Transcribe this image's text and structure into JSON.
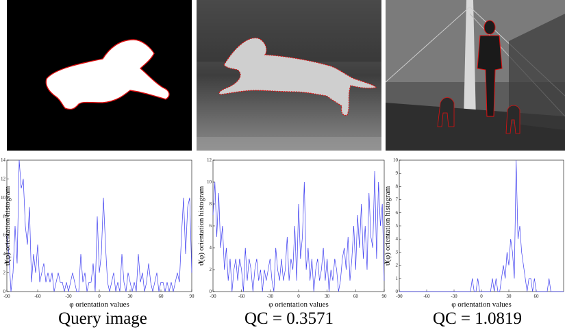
{
  "panels": [
    {
      "caption": "Query image",
      "image": "white-dog-silhouette-mask-red-contour"
    },
    {
      "caption": "QC = 0.3571",
      "image": "grayscale-leaping-dog-red-contour"
    },
    {
      "caption": "QC = 1.0819",
      "image": "grayscale-man-walking-dogs-on-bridge-red-contour"
    }
  ],
  "colors": {
    "series": "#3b3bf0",
    "contour": "#e01010",
    "axis": "#000000"
  },
  "chart_data": [
    {
      "type": "line",
      "xlabel": "φ orientation values",
      "ylabel": "ϑ(φ) orientation histogram",
      "xlim": [
        -90,
        90
      ],
      "ylim": [
        0,
        14
      ],
      "xticks": [
        -90,
        -60,
        -30,
        0,
        30,
        60,
        90
      ],
      "yticks": [
        0,
        2,
        4,
        6,
        8,
        10,
        12,
        14
      ],
      "x": [
        -90,
        -88,
        -86,
        -84,
        -82,
        -80,
        -78,
        -76,
        -74,
        -72,
        -70,
        -68,
        -66,
        -64,
        -62,
        -60,
        -58,
        -56,
        -54,
        -52,
        -50,
        -48,
        -46,
        -44,
        -42,
        -40,
        -38,
        -36,
        -34,
        -32,
        -30,
        -28,
        -26,
        -24,
        -22,
        -20,
        -18,
        -16,
        -14,
        -12,
        -10,
        -8,
        -6,
        -4,
        -2,
        0,
        2,
        4,
        6,
        8,
        10,
        12,
        14,
        16,
        18,
        20,
        22,
        24,
        26,
        28,
        30,
        32,
        34,
        36,
        38,
        40,
        42,
        44,
        46,
        48,
        50,
        52,
        54,
        56,
        58,
        60,
        62,
        64,
        66,
        68,
        70,
        72,
        74,
        76,
        78,
        80,
        82,
        84,
        86,
        88,
        90
      ],
      "values": [
        6,
        4,
        0,
        2,
        7,
        3,
        14,
        11,
        12,
        7,
        5,
        9,
        1,
        4,
        2,
        5,
        1,
        2,
        3,
        1,
        2,
        1,
        2,
        0,
        1,
        2,
        1,
        1,
        0,
        1,
        0,
        1,
        2,
        1,
        0,
        0,
        4,
        1,
        2,
        0,
        1,
        1,
        3,
        0,
        8,
        2,
        4,
        10,
        5,
        1,
        0,
        1,
        2,
        0,
        1,
        0,
        4,
        1,
        0,
        2,
        1,
        0,
        1,
        0,
        4,
        1,
        2,
        0,
        1,
        3,
        1,
        0,
        1,
        2,
        0,
        1,
        1,
        0,
        1,
        0,
        1,
        0,
        1,
        2,
        1,
        6,
        10,
        4,
        9,
        10,
        2
      ],
      "series": [
        {
          "values_ref": "values"
        }
      ]
    },
    {
      "type": "line",
      "xlabel": "φ orientation values",
      "ylabel": "ϑ(φ) orientation histogram",
      "xlim": [
        -90,
        90
      ],
      "ylim": [
        0,
        12
      ],
      "xticks": [
        -90,
        -60,
        -30,
        0,
        30,
        60,
        90
      ],
      "yticks": [
        0,
        2,
        4,
        6,
        8,
        10,
        12
      ],
      "x": [
        -90,
        -88,
        -86,
        -84,
        -82,
        -80,
        -78,
        -76,
        -74,
        -72,
        -70,
        -68,
        -66,
        -64,
        -62,
        -60,
        -58,
        -56,
        -54,
        -52,
        -50,
        -48,
        -46,
        -44,
        -42,
        -40,
        -38,
        -36,
        -34,
        -32,
        -30,
        -28,
        -26,
        -24,
        -22,
        -20,
        -18,
        -16,
        -14,
        -12,
        -10,
        -8,
        -6,
        -4,
        -2,
        0,
        2,
        4,
        6,
        8,
        10,
        12,
        14,
        16,
        18,
        20,
        22,
        24,
        26,
        28,
        30,
        32,
        34,
        36,
        38,
        40,
        42,
        44,
        46,
        48,
        50,
        52,
        54,
        56,
        58,
        60,
        62,
        64,
        66,
        68,
        70,
        72,
        74,
        76,
        78,
        80,
        82,
        84,
        86,
        88,
        90
      ],
      "values": [
        7,
        10,
        5,
        9,
        4,
        6,
        2,
        4,
        1,
        3,
        0,
        2,
        3,
        1,
        3,
        2,
        0,
        4,
        1,
        3,
        2,
        0,
        2,
        3,
        1,
        2,
        0,
        2,
        1,
        2,
        3,
        1,
        0,
        4,
        2,
        1,
        3,
        1,
        2,
        5,
        1,
        3,
        2,
        6,
        1,
        8,
        3,
        5,
        10,
        2,
        4,
        1,
        3,
        0,
        2,
        3,
        1,
        2,
        4,
        1,
        3,
        0,
        2,
        1,
        3,
        2,
        0,
        1,
        3,
        4,
        2,
        5,
        1,
        3,
        6,
        2,
        7,
        4,
        8,
        3,
        6,
        2,
        9,
        5,
        4,
        11,
        3,
        10,
        6,
        8,
        1
      ],
      "series": [
        {
          "values_ref": "values"
        }
      ]
    },
    {
      "type": "line",
      "xlabel": "φ orientation values",
      "ylabel": "ϑ(φ) orientation histogram",
      "xlim": [
        -90,
        90
      ],
      "ylim": [
        0,
        10
      ],
      "xticks": [
        -90,
        -60,
        -30,
        0,
        30,
        60
      ],
      "yticks": [
        0,
        1,
        2,
        3,
        4,
        5,
        6,
        7,
        8,
        9,
        10
      ],
      "x": [
        -90,
        -88,
        -86,
        -84,
        -82,
        -80,
        -78,
        -76,
        -74,
        -72,
        -70,
        -68,
        -66,
        -64,
        -62,
        -60,
        -58,
        -56,
        -54,
        -52,
        -50,
        -48,
        -46,
        -44,
        -42,
        -40,
        -38,
        -36,
        -34,
        -32,
        -30,
        -28,
        -26,
        -24,
        -22,
        -20,
        -18,
        -16,
        -14,
        -12,
        -10,
        -8,
        -6,
        -4,
        -2,
        0,
        2,
        4,
        6,
        8,
        10,
        12,
        14,
        16,
        18,
        20,
        22,
        24,
        26,
        28,
        30,
        32,
        34,
        36,
        38,
        40,
        42,
        44,
        46,
        48,
        50,
        52,
        54,
        56,
        58,
        60,
        62,
        64,
        66,
        68,
        70,
        72,
        74,
        76,
        78,
        80,
        82,
        84,
        86,
        88,
        90
      ],
      "values": [
        0,
        0,
        0,
        0,
        0,
        0,
        0,
        0,
        0,
        0,
        0,
        0,
        0,
        0,
        0,
        0,
        0,
        0,
        0,
        0,
        0,
        0,
        0,
        0,
        0,
        0,
        0,
        0,
        0,
        0,
        0,
        0,
        0,
        0,
        0,
        0,
        0,
        0,
        0,
        0,
        1,
        0,
        0,
        1,
        0,
        0,
        0,
        0,
        0,
        0,
        0,
        1,
        0,
        1,
        0,
        0,
        1,
        2,
        1,
        3,
        2,
        4,
        3,
        1,
        10,
        4,
        5,
        3,
        2,
        1,
        0,
        1,
        1,
        0,
        1,
        0,
        0,
        0,
        0,
        0,
        0,
        0,
        1,
        0,
        0,
        0,
        0,
        0,
        0,
        0,
        0
      ],
      "series": [
        {
          "values_ref": "values"
        }
      ]
    }
  ]
}
